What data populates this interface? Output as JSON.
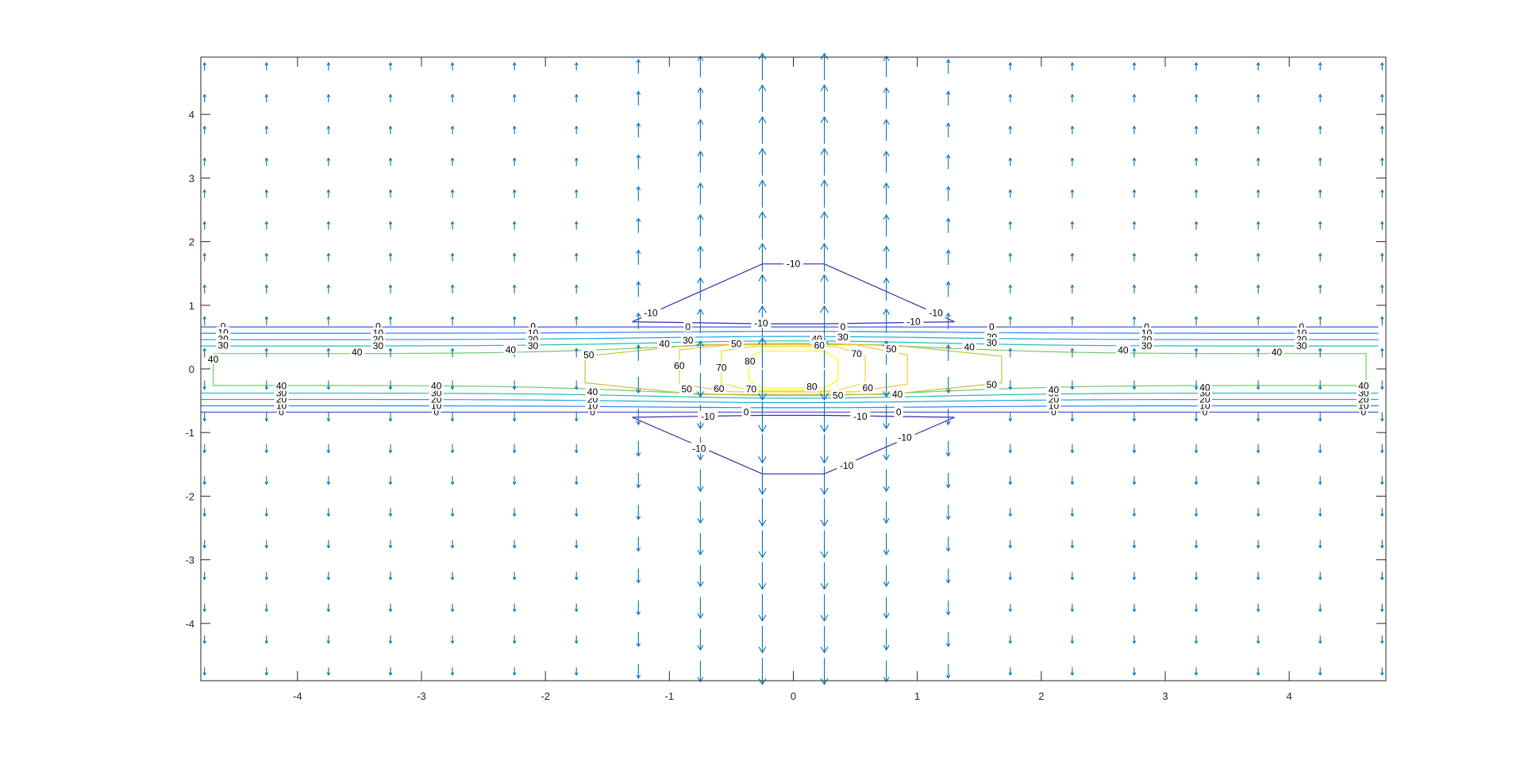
{
  "chart_data": {
    "type": "contour-quiver",
    "title": "",
    "xlabel": "",
    "ylabel": "",
    "xlim": [
      -4.78,
      4.78
    ],
    "ylim": [
      -4.9,
      4.9
    ],
    "x_ticks": [
      -4,
      -3,
      -2,
      -1,
      0,
      1,
      2,
      3,
      4
    ],
    "y_ticks": [
      -4,
      -3,
      -2,
      -1,
      0,
      1,
      2,
      3,
      4
    ],
    "x_tick_labels": [
      "-4",
      "-3",
      "-2",
      "-1",
      "0",
      "1",
      "2",
      "3",
      "4"
    ],
    "y_tick_labels": [
      "-4",
      "-3",
      "-2",
      "-1",
      "0",
      "1",
      "2",
      "3",
      "4"
    ],
    "grid": false,
    "box": true,
    "quiver": {
      "color": "#0072BD",
      "x": [
        -4.75,
        -4.25,
        -3.75,
        -3.25,
        -2.75,
        -2.25,
        -1.75,
        -1.25,
        -0.75,
        -0.25,
        0.25,
        0.75,
        1.25,
        1.75,
        2.25,
        2.75,
        3.25,
        3.75,
        4.25,
        4.75
      ],
      "y": [
        4.75,
        4.25,
        3.75,
        3.25,
        2.75,
        2.25,
        1.75,
        1.25,
        0.75,
        0.25,
        -0.25,
        -0.75,
        -1.25,
        -1.75,
        -2.25,
        -2.75,
        -3.25,
        -3.75,
        -4.25,
        -4.75
      ],
      "direction": "away from y = 0 (up above the x-axis, down below it); largest near x = 0"
    },
    "contour_levels": [
      -10,
      0,
      10,
      20,
      30,
      40,
      50,
      60,
      70,
      80
    ],
    "contour_colors": {
      "-10": "#3e26a8",
      "0": "#4354e1",
      "10": "#2d81f9",
      "20": "#1aa6da",
      "30": "#1dbfb2",
      "40": "#6fcb6a",
      "50": "#c3bf3a",
      "60": "#fbbf3e",
      "70": "#f0da2a",
      "80": "#f9fb15"
    },
    "contour_labels": [
      {
        "text": "-10",
        "x": 0.0,
        "y": 1.65
      },
      {
        "text": "-10",
        "x": -1.15,
        "y": 0.88
      },
      {
        "text": "-10",
        "x": 1.15,
        "y": 0.88
      },
      {
        "text": "-10",
        "x": -0.26,
        "y": 0.72
      },
      {
        "text": "-10",
        "x": 0.97,
        "y": 0.74
      },
      {
        "text": "-10",
        "x": -0.69,
        "y": -0.75
      },
      {
        "text": "-10",
        "x": 0.54,
        "y": -0.75
      },
      {
        "text": "-10",
        "x": -0.76,
        "y": -1.25
      },
      {
        "text": "-10",
        "x": 0.43,
        "y": -1.52
      },
      {
        "text": "-10",
        "x": 0.9,
        "y": -1.08
      },
      {
        "text": "0",
        "x": -4.6,
        "y": 0.67
      },
      {
        "text": "0",
        "x": -3.35,
        "y": 0.67
      },
      {
        "text": "0",
        "x": -2.1,
        "y": 0.67
      },
      {
        "text": "0",
        "x": -0.85,
        "y": 0.66
      },
      {
        "text": "0",
        "x": 0.4,
        "y": 0.66
      },
      {
        "text": "0",
        "x": 1.6,
        "y": 0.66
      },
      {
        "text": "0",
        "x": 2.85,
        "y": 0.66
      },
      {
        "text": "0",
        "x": 4.1,
        "y": 0.66
      },
      {
        "text": "0",
        "x": -4.13,
        "y": -0.68
      },
      {
        "text": "0",
        "x": -2.88,
        "y": -0.68
      },
      {
        "text": "0",
        "x": -1.62,
        "y": -0.68
      },
      {
        "text": "0",
        "x": -0.38,
        "y": -0.68
      },
      {
        "text": "0",
        "x": 0.85,
        "y": -0.68
      },
      {
        "text": "0",
        "x": 2.1,
        "y": -0.68
      },
      {
        "text": "0",
        "x": 3.32,
        "y": -0.68
      },
      {
        "text": "0",
        "x": 4.6,
        "y": -0.68
      },
      {
        "text": "10",
        "x": -4.6,
        "y": 0.57
      },
      {
        "text": "10",
        "x": -3.35,
        "y": 0.56
      },
      {
        "text": "10",
        "x": -2.1,
        "y": 0.56
      },
      {
        "text": "10",
        "x": 2.85,
        "y": 0.56
      },
      {
        "text": "10",
        "x": 4.1,
        "y": 0.56
      },
      {
        "text": "10",
        "x": -4.13,
        "y": -0.58
      },
      {
        "text": "10",
        "x": -2.88,
        "y": -0.58
      },
      {
        "text": "10",
        "x": -1.62,
        "y": -0.58
      },
      {
        "text": "10",
        "x": 2.1,
        "y": -0.58
      },
      {
        "text": "10",
        "x": 3.32,
        "y": -0.58
      },
      {
        "text": "10",
        "x": 4.6,
        "y": -0.58
      },
      {
        "text": "20",
        "x": -4.6,
        "y": 0.47
      },
      {
        "text": "20",
        "x": -3.35,
        "y": 0.46
      },
      {
        "text": "20",
        "x": -2.1,
        "y": 0.46
      },
      {
        "text": "20",
        "x": 1.6,
        "y": 0.5
      },
      {
        "text": "20",
        "x": 2.85,
        "y": 0.46
      },
      {
        "text": "20",
        "x": 4.1,
        "y": 0.46
      },
      {
        "text": "20",
        "x": -4.13,
        "y": -0.48
      },
      {
        "text": "20",
        "x": -2.88,
        "y": -0.48
      },
      {
        "text": "20",
        "x": -1.62,
        "y": -0.48
      },
      {
        "text": "20",
        "x": 2.1,
        "y": -0.48
      },
      {
        "text": "20",
        "x": 3.32,
        "y": -0.48
      },
      {
        "text": "20",
        "x": 4.6,
        "y": -0.48
      },
      {
        "text": "30",
        "x": -4.6,
        "y": 0.37
      },
      {
        "text": "30",
        "x": -3.35,
        "y": 0.36
      },
      {
        "text": "30",
        "x": -2.1,
        "y": 0.36
      },
      {
        "text": "30",
        "x": -0.85,
        "y": 0.45
      },
      {
        "text": "30",
        "x": 0.4,
        "y": 0.5
      },
      {
        "text": "30",
        "x": 1.6,
        "y": 0.41
      },
      {
        "text": "30",
        "x": 2.85,
        "y": 0.36
      },
      {
        "text": "30",
        "x": 4.1,
        "y": 0.36
      },
      {
        "text": "30",
        "x": -4.13,
        "y": -0.38
      },
      {
        "text": "30",
        "x": -2.88,
        "y": -0.38
      },
      {
        "text": "30",
        "x": -1.62,
        "y": -0.38
      },
      {
        "text": "30",
        "x": 2.1,
        "y": -0.38
      },
      {
        "text": "30",
        "x": 3.32,
        "y": -0.38
      },
      {
        "text": "30",
        "x": 4.6,
        "y": -0.38
      },
      {
        "text": "40",
        "x": -4.68,
        "y": 0.15
      },
      {
        "text": "40",
        "x": -3.52,
        "y": 0.26
      },
      {
        "text": "40",
        "x": -2.28,
        "y": 0.3
      },
      {
        "text": "40",
        "x": -1.04,
        "y": 0.39
      },
      {
        "text": "40",
        "x": 0.19,
        "y": 0.47
      },
      {
        "text": "40",
        "x": 1.42,
        "y": 0.34
      },
      {
        "text": "40",
        "x": 2.66,
        "y": 0.29
      },
      {
        "text": "40",
        "x": 3.9,
        "y": 0.26
      },
      {
        "text": "40",
        "x": -4.13,
        "y": -0.27
      },
      {
        "text": "40",
        "x": -2.88,
        "y": -0.27
      },
      {
        "text": "40",
        "x": -1.62,
        "y": -0.36
      },
      {
        "text": "40",
        "x": 0.84,
        "y": -0.4
      },
      {
        "text": "40",
        "x": 2.1,
        "y": -0.33
      },
      {
        "text": "40",
        "x": 3.32,
        "y": -0.29
      },
      {
        "text": "40",
        "x": 4.6,
        "y": -0.27
      },
      {
        "text": "50",
        "x": -1.65,
        "y": 0.22
      },
      {
        "text": "50",
        "x": -0.46,
        "y": 0.39
      },
      {
        "text": "50",
        "x": 0.79,
        "y": 0.31
      },
      {
        "text": "50",
        "x": -0.86,
        "y": -0.32
      },
      {
        "text": "50",
        "x": 0.36,
        "y": -0.42
      },
      {
        "text": "50",
        "x": 1.6,
        "y": -0.25
      },
      {
        "text": "60",
        "x": 0.21,
        "y": 0.37
      },
      {
        "text": "60",
        "x": -0.92,
        "y": 0.05
      },
      {
        "text": "60",
        "x": -0.6,
        "y": -0.31
      },
      {
        "text": "60",
        "x": 0.6,
        "y": -0.3
      },
      {
        "text": "70",
        "x": 0.51,
        "y": 0.24
      },
      {
        "text": "70",
        "x": -0.58,
        "y": 0.02
      },
      {
        "text": "70",
        "x": -0.34,
        "y": -0.32
      },
      {
        "text": "80",
        "x": -0.35,
        "y": 0.12
      },
      {
        "text": "80",
        "x": 0.15,
        "y": -0.28
      }
    ]
  }
}
